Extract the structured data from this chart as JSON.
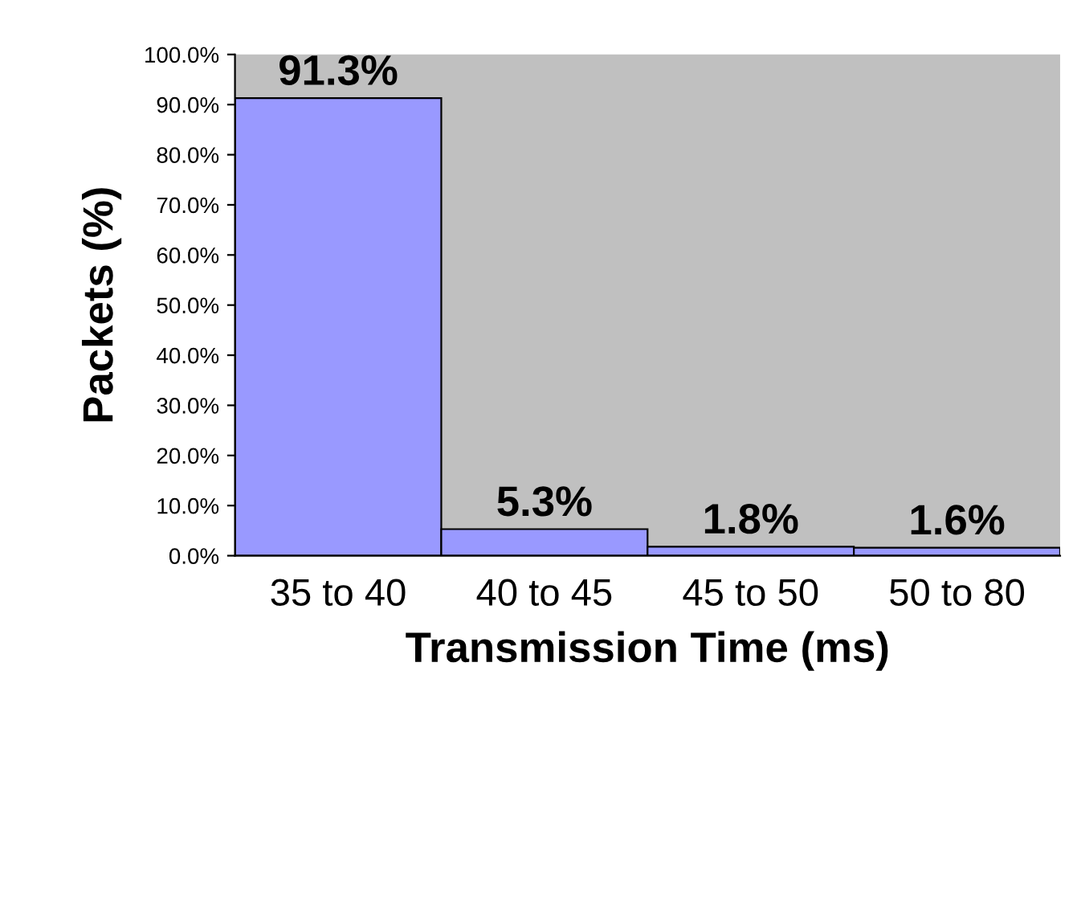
{
  "chart_data": {
    "type": "bar",
    "xlabel": "Transmission Time (ms)",
    "ylabel": "Packets (%)",
    "categories": [
      "35 to 40",
      "40 to 45",
      "45 to 50",
      "50 to 80"
    ],
    "values": [
      91.3,
      5.3,
      1.8,
      1.6
    ],
    "value_labels": [
      "91.3%",
      "5.3%",
      "1.8%",
      "1.6%"
    ],
    "color": "#9999ff",
    "ylim": [
      0,
      100
    ],
    "yticks": [
      {
        "value": 0,
        "label": "0.0%"
      },
      {
        "value": 10,
        "label": "10.0%"
      },
      {
        "value": 20,
        "label": "20.0%"
      },
      {
        "value": 30,
        "label": "30.0%"
      },
      {
        "value": 40,
        "label": "40.0%"
      },
      {
        "value": 50,
        "label": "50.0%"
      },
      {
        "value": 60,
        "label": "60.0%"
      },
      {
        "value": 70,
        "label": "70.0%"
      },
      {
        "value": 80,
        "label": "80.0%"
      },
      {
        "value": 90,
        "label": "90.0%"
      },
      {
        "value": 100,
        "label": "100.0%"
      }
    ],
    "grid": false,
    "legend": false
  }
}
